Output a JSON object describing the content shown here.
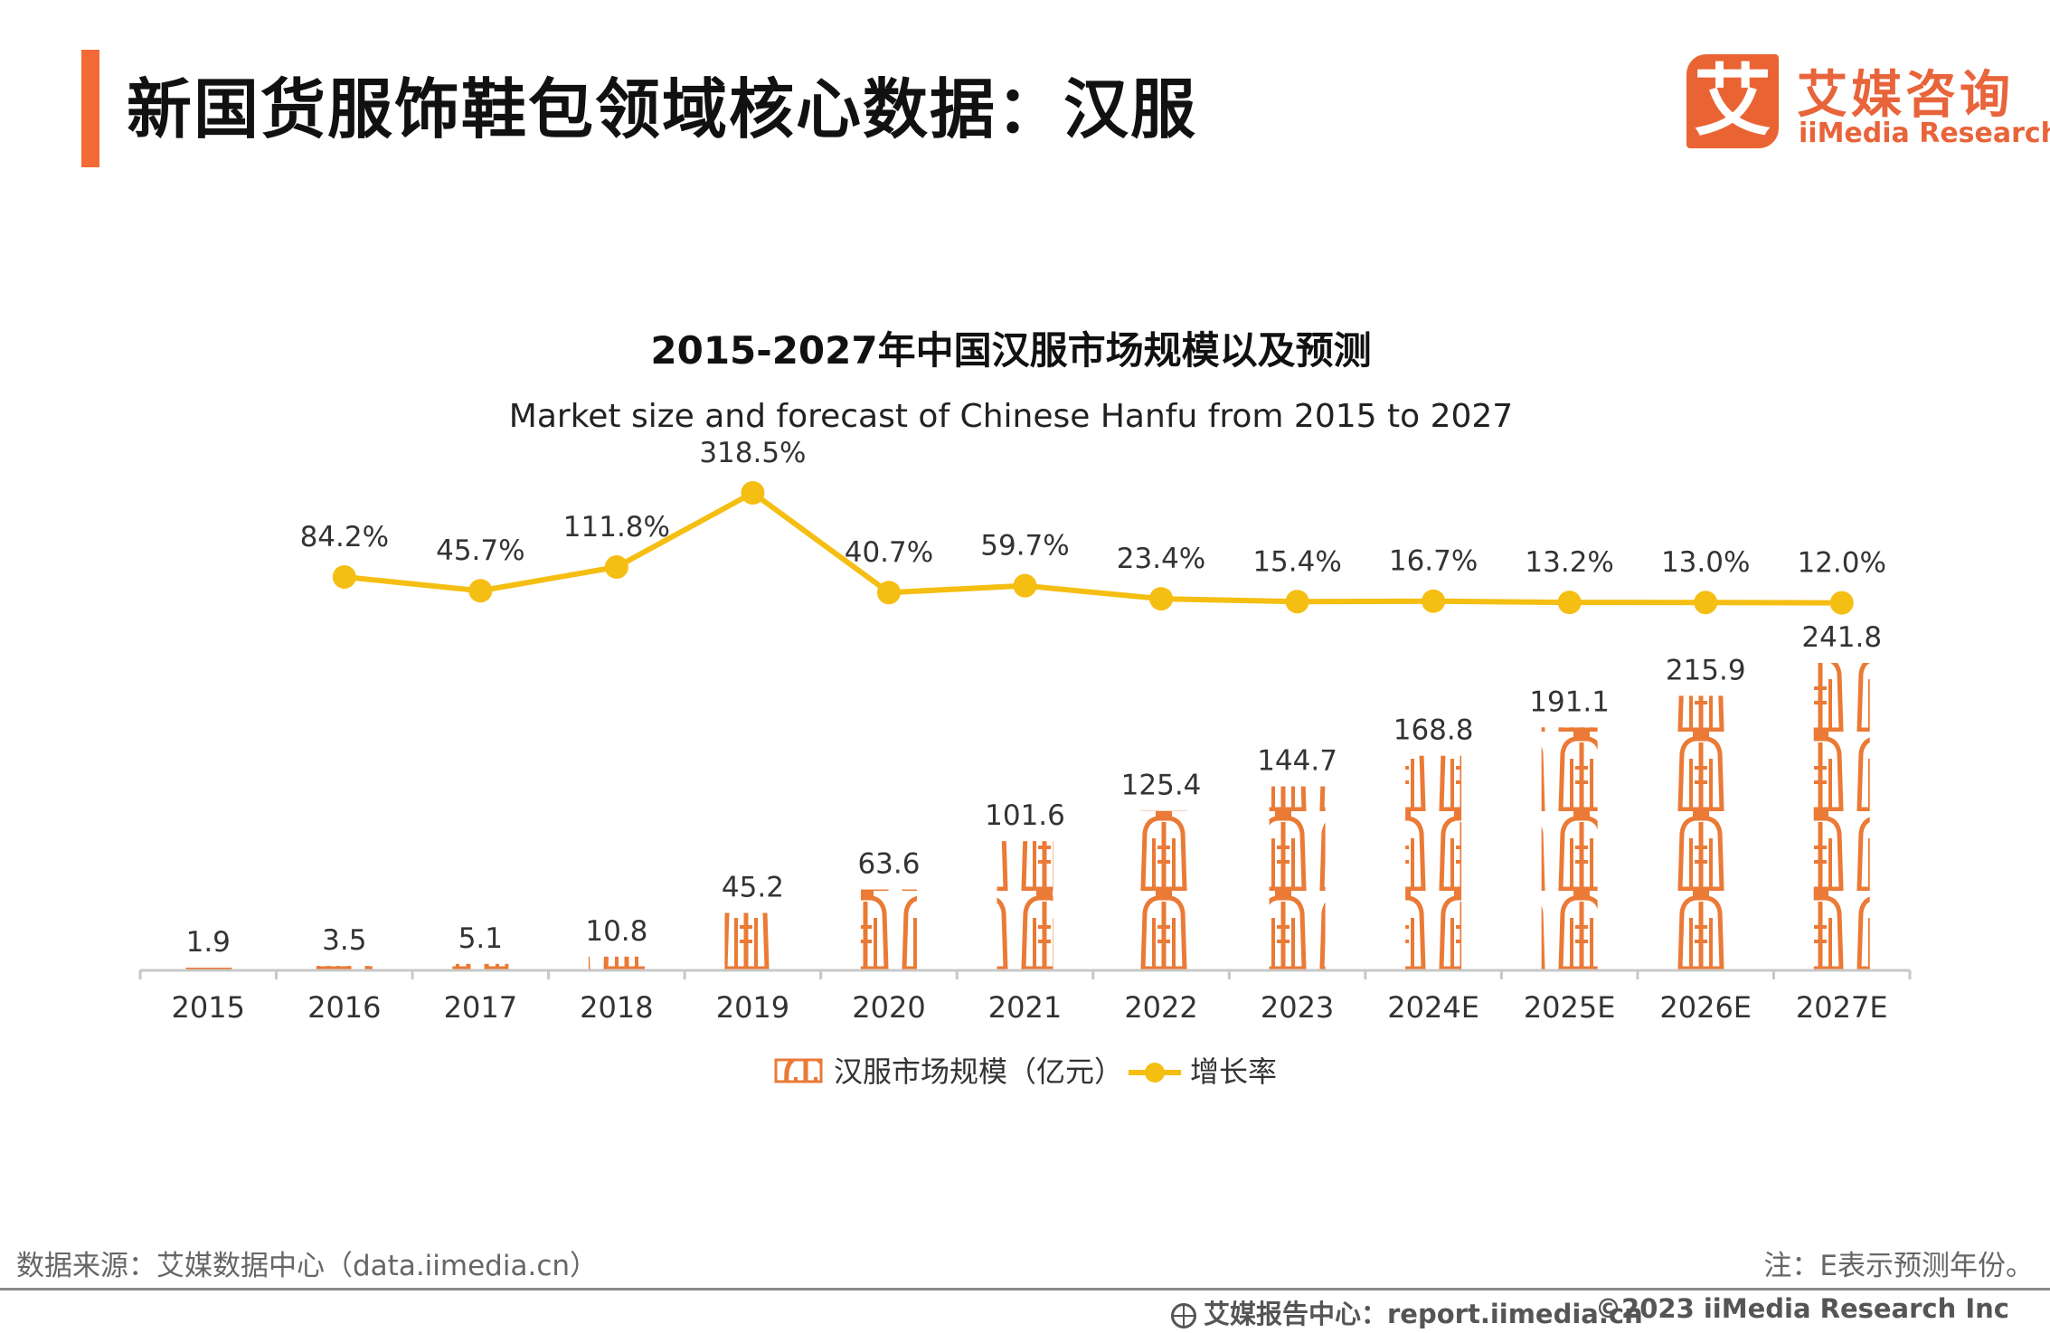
{
  "header": {
    "title": "新国货服饰鞋包领域核心数据：汉服"
  },
  "logo": {
    "mark": "艾",
    "name_cn": "艾媒咨询",
    "name_en": "iiMedia Research"
  },
  "footer": {
    "source": "数据来源：艾媒数据中心（data.iimedia.cn）",
    "note": "注：E表示预测年份。",
    "report": "艾媒报告中心：report.iimedia.cn",
    "copyright": "©2023  iiMedia Research  Inc"
  },
  "colors": {
    "accent": "#F26A35",
    "bar": "#EA7A36",
    "line": "#F5BE12"
  },
  "chart_data": {
    "type": "bar",
    "title": "2015-2027年中国汉服市场规模以及预测",
    "subtitle": "Market size and forecast of Chinese Hanfu from 2015 to 2027",
    "categories": [
      "2015",
      "2016",
      "2017",
      "2018",
      "2019",
      "2020",
      "2021",
      "2022",
      "2023",
      "2024E",
      "2025E",
      "2026E",
      "2027E"
    ],
    "series": [
      {
        "name": "汉服市场规模（亿元）",
        "type": "bar",
        "values": [
          1.9,
          3.5,
          5.1,
          10.8,
          45.2,
          63.6,
          101.6,
          125.4,
          144.7,
          168.8,
          191.1,
          215.9,
          241.8
        ],
        "labels": [
          "1.9",
          "3.5",
          "5.1",
          "10.8",
          "45.2",
          "63.6",
          "101.6",
          "125.4",
          "144.7",
          "168.8",
          "191.1",
          "215.9",
          "241.8"
        ]
      },
      {
        "name": "增长率",
        "type": "line",
        "values": [
          null,
          84.2,
          45.7,
          111.8,
          318.5,
          40.7,
          59.7,
          23.4,
          15.4,
          16.7,
          13.2,
          13.0,
          12.0
        ],
        "labels": [
          "",
          "84.2%",
          "45.7%",
          "111.8%",
          "318.5%",
          "40.7%",
          "59.7%",
          "23.4%",
          "15.4%",
          "16.7%",
          "13.2%",
          "13.0%",
          "12.0%"
        ]
      }
    ],
    "bar_ylim": [
      0,
      241.8
    ],
    "line_ylim": [
      0,
      318.5
    ],
    "legend_position": "bottom"
  }
}
